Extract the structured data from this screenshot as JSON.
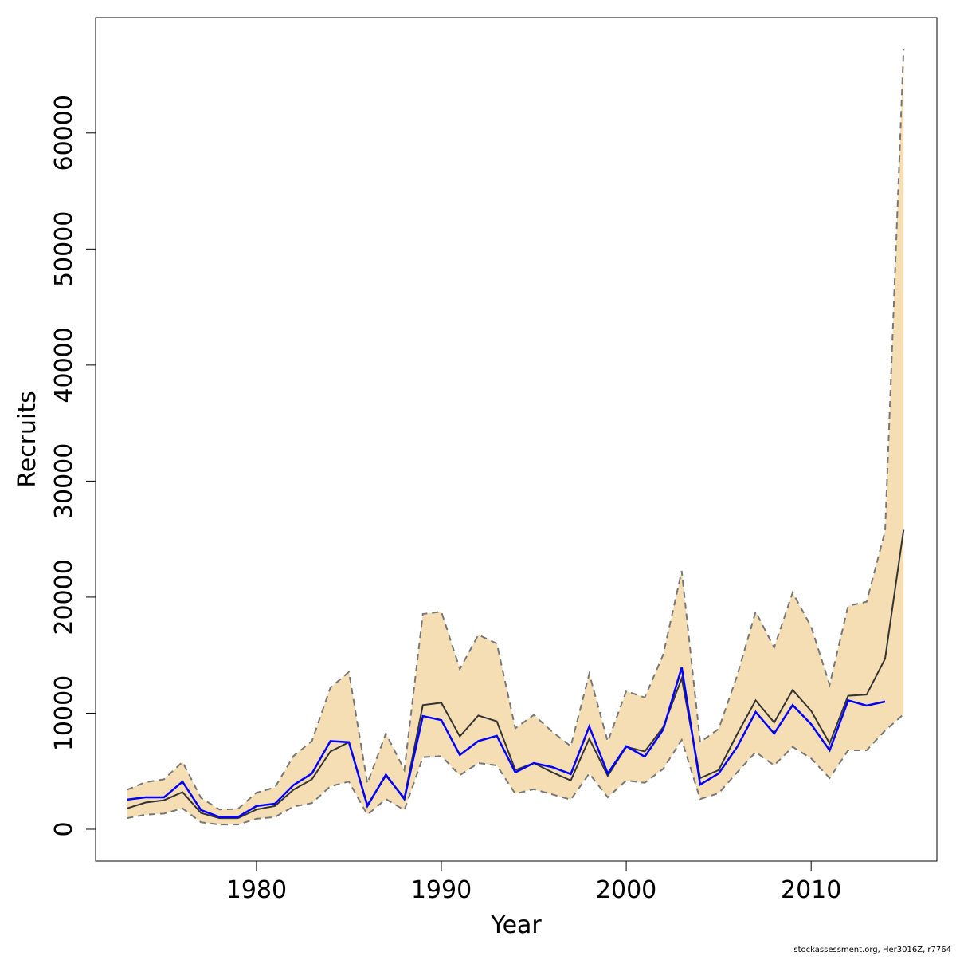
{
  "chart_data": {
    "type": "line",
    "x_label": "Year",
    "y_label": "Recruits",
    "footnote": "stockassessment.org, Her3016Z, r7764",
    "x": [
      1973,
      1974,
      1975,
      1976,
      1977,
      1978,
      1979,
      1980,
      1981,
      1982,
      1983,
      1984,
      1985,
      1986,
      1987,
      1988,
      1989,
      1990,
      1991,
      1992,
      1993,
      1994,
      1995,
      1996,
      1997,
      1998,
      1999,
      2000,
      2001,
      2002,
      2003,
      2004,
      2005,
      2006,
      2007,
      2008,
      2009,
      2010,
      2011,
      2012,
      2013,
      2014,
      2015
    ],
    "band": {
      "color": "#f5deb3",
      "line_color": "#777777",
      "line_style": "dashed",
      "upper": [
        3400,
        4050,
        4300,
        5800,
        2700,
        1700,
        1750,
        3150,
        3600,
        6300,
        7600,
        12200,
        13550,
        3950,
        8250,
        5100,
        18550,
        18750,
        13800,
        16750,
        16000,
        8700,
        9850,
        8400,
        7150,
        13400,
        7550,
        11900,
        11350,
        15050,
        22250,
        7500,
        8650,
        13250,
        18750,
        15650,
        20400,
        17450,
        12450,
        19250,
        19600,
        25700,
        67200
      ],
      "lower": [
        950,
        1250,
        1350,
        1800,
        600,
        400,
        400,
        900,
        1050,
        1950,
        2250,
        3700,
        4100,
        1250,
        2600,
        1650,
        6200,
        6300,
        4650,
        5700,
        5500,
        3050,
        3450,
        3000,
        2550,
        4800,
        2750,
        4200,
        4000,
        5200,
        7700,
        2600,
        3100,
        4900,
        6650,
        5500,
        7100,
        6100,
        4400,
        6800,
        6800,
        8500,
        9900
      ]
    },
    "series": [
      {
        "color": "#333333",
        "values": [
          1800,
          2300,
          2500,
          3200,
          1400,
          950,
          950,
          1700,
          2000,
          3400,
          4300,
          6700,
          7500,
          2100,
          4600,
          2700,
          10700,
          10900,
          8000,
          9800,
          9300,
          5100,
          5700,
          4900,
          4200,
          7800,
          4600,
          7100,
          6700,
          8800,
          13000,
          4400,
          5100,
          8200,
          11100,
          9200,
          12000,
          10200,
          7400,
          11500,
          11600,
          14700,
          25800
        ]
      },
      {
        "color": "#0000ff",
        "values": [
          2550,
          2750,
          2750,
          4100,
          1650,
          1050,
          1050,
          2000,
          2200,
          3800,
          4800,
          7600,
          7500,
          2000,
          4700,
          2600,
          9750,
          9400,
          6400,
          7600,
          8050,
          4900,
          5700,
          5350,
          4750,
          8850,
          4800,
          7150,
          6250,
          8600,
          13950,
          3850,
          4800,
          7100,
          10100,
          8250,
          10700,
          9050,
          6800,
          11100,
          10650,
          11000,
          null
        ]
      }
    ],
    "xlim": [
      1971.3,
      2016.8
    ],
    "xticks": [
      1980,
      1990,
      2000,
      2010
    ],
    "ylim": [
      -2750,
      69950
    ],
    "yticks": [
      0,
      10000,
      20000,
      30000,
      40000,
      50000,
      60000
    ]
  }
}
